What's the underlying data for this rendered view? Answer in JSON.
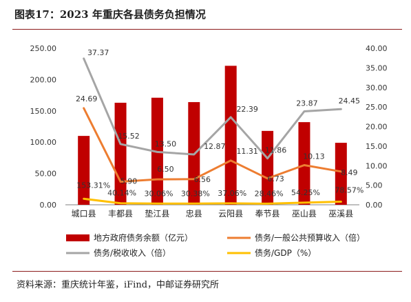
{
  "figure": {
    "title": "图表17：2023 年重庆各县债务负担情况",
    "source": "资料来源：重庆统计年鉴，iFind，中邮证券研究所"
  },
  "chart_data": {
    "type": "bar",
    "categories": [
      "城口县",
      "丰都县",
      "垫江县",
      "忠县",
      "云阳县",
      "奉节县",
      "巫山县",
      "巫溪县"
    ],
    "left_axis": {
      "min": 0,
      "max": 250,
      "step": 50,
      "ticks": [
        "0.00",
        "50.00",
        "100.00",
        "150.00",
        "200.00",
        "250.00"
      ]
    },
    "right_axis": {
      "min": 0,
      "max": 40,
      "step": 5,
      "ticks": [
        "0.00",
        "5.00",
        "10.00",
        "15.00",
        "20.00",
        "25.00",
        "30.00",
        "35.00",
        "40.00"
      ]
    },
    "series": [
      {
        "name": "地方政府债务余额（亿元）",
        "type": "bar",
        "axis": "left",
        "color": "#c00000",
        "values": [
          110,
          163,
          171,
          164,
          222,
          118,
          132,
          99
        ],
        "labels": []
      },
      {
        "name": "债务/一般公共预算收入（倍）",
        "type": "line",
        "axis": "right",
        "color": "#ed7d31",
        "values": [
          24.69,
          5.9,
          6.5,
          6.56,
          11.31,
          6.73,
          10.13,
          8.49
        ],
        "labels": [
          "24.69",
          "5.90",
          "6.50",
          "6.56",
          "11.31",
          "6.73",
          "10.13",
          "8.49"
        ]
      },
      {
        "name": "债务/税收收入（倍）",
        "type": "line",
        "axis": "right",
        "color": "#a5a5a5",
        "values": [
          37.37,
          15.52,
          13.5,
          12.87,
          22.39,
          11.86,
          23.87,
          24.45
        ],
        "labels": [
          "37.37",
          "15.52",
          "13.50",
          "12.87",
          "22.39",
          "11.86",
          "23.87",
          "24.45"
        ]
      },
      {
        "name": "债务/GDP（%）",
        "type": "line",
        "axis": "right_percent",
        "color": "#ffc000",
        "values": [
          153.31,
          40.14,
          30.06,
          30.38,
          37.06,
          28.46,
          54.25,
          78.57
        ],
        "labels": [
          "153.31%",
          "40.14%",
          "30.06%",
          "30.38%",
          "37.06%",
          "28.46%",
          "54.25%",
          "78.57%"
        ]
      }
    ],
    "grid": false,
    "legend_position": "bottom"
  }
}
